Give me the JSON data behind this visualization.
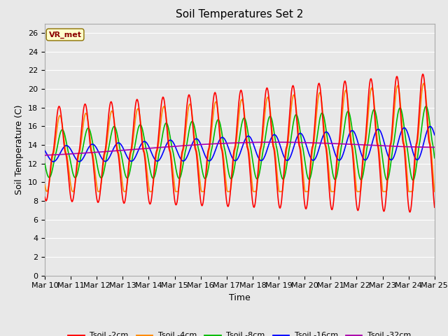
{
  "title": "Soil Temperatures Set 2",
  "xlabel": "Time",
  "ylabel": "Soil Temperature (C)",
  "annotation": "VR_met",
  "ylim": [
    0,
    27
  ],
  "yticks": [
    0,
    2,
    4,
    6,
    8,
    10,
    12,
    14,
    16,
    18,
    20,
    22,
    24,
    26
  ],
  "x_labels": [
    "Mar 10",
    "Mar 11",
    "Mar 12",
    "Mar 13",
    "Mar 14",
    "Mar 15",
    "Mar 16",
    "Mar 17",
    "Mar 18",
    "Mar 19",
    "Mar 20",
    "Mar 21",
    "Mar 22",
    "Mar 23",
    "Mar 24",
    "Mar 25"
  ],
  "series_colors": [
    "#ff0000",
    "#ff8800",
    "#00bb00",
    "#0000ff",
    "#aa00aa"
  ],
  "series_labels": [
    "Tsoil -2cm",
    "Tsoil -4cm",
    "Tsoil -8cm",
    "Tsoil -16cm",
    "Tsoil -32cm"
  ],
  "background_color": "#e8e8e8",
  "plot_bg_color": "#e8e8e8",
  "grid_color": "#ffffff",
  "title_fontsize": 11,
  "label_fontsize": 9,
  "tick_fontsize": 8
}
